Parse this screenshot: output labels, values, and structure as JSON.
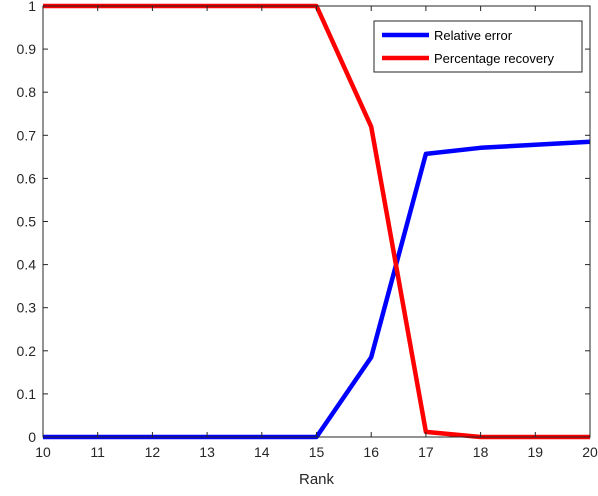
{
  "chart_data": {
    "type": "line",
    "title": "",
    "xlabel": "Rank",
    "ylabel": "",
    "xlim": [
      10,
      20
    ],
    "ylim": [
      0,
      1
    ],
    "x": [
      10,
      11,
      12,
      13,
      14,
      15,
      16,
      17,
      18,
      19,
      20
    ],
    "xticks": [
      "10",
      "11",
      "12",
      "13",
      "14",
      "15",
      "16",
      "17",
      "18",
      "19",
      "20"
    ],
    "yticks": [
      "0",
      "0.1",
      "0.2",
      "0.3",
      "0.4",
      "0.5",
      "0.6",
      "0.7",
      "0.8",
      "0.9",
      "1"
    ],
    "grid": false,
    "legend_position": "top-right",
    "series": [
      {
        "name": "Relative error",
        "color": "#0000ff",
        "values": [
          0,
          0,
          0,
          0,
          0,
          0,
          0.185,
          0.657,
          0.671,
          0.678,
          0.685
        ]
      },
      {
        "name": "Percentage recovery",
        "color": "#ff0000",
        "values": [
          1,
          1,
          1,
          1,
          1,
          1,
          0.72,
          0.012,
          0,
          0,
          0
        ]
      }
    ]
  }
}
